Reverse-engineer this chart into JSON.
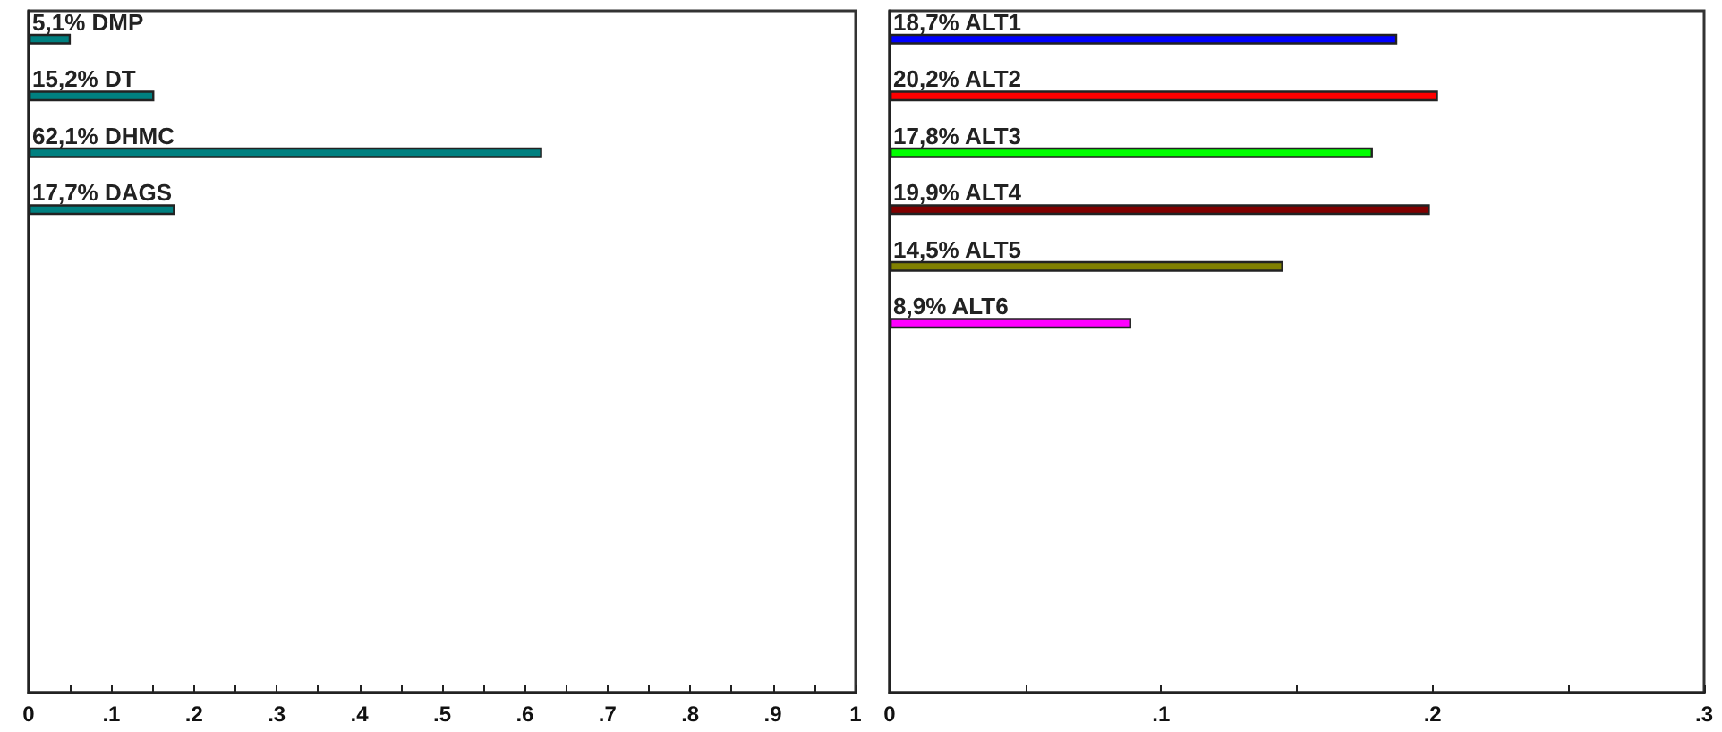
{
  "chart_data": [
    {
      "type": "bar",
      "orientation": "horizontal",
      "categories": [
        null,
        null,
        null,
        null,
        null,
        null,
        null,
        null,
        null,
        null,
        null,
        null
      ],
      "values": [
        0.051,
        0.152,
        0.621,
        0.177,
        null,
        null,
        null,
        null,
        null,
        null,
        null,
        null
      ],
      "color": "#008080",
      "value_labels": [
        "5,1% DMP",
        "15,2% DT",
        "62,1% DHMC",
        "17,7% DAGS",
        null,
        null,
        null,
        null,
        null,
        null,
        null,
        null
      ],
      "xlim": [
        0,
        1
      ],
      "xticks": [
        {
          "value": 0,
          "label": "0"
        },
        {
          "value": 0.05,
          "label": null
        },
        {
          "value": 0.1,
          "label": ".1"
        },
        {
          "value": 0.15,
          "label": null
        },
        {
          "value": 0.2,
          "label": ".2"
        },
        {
          "value": 0.25,
          "label": null
        },
        {
          "value": 0.3,
          "label": ".3"
        },
        {
          "value": 0.35,
          "label": null
        },
        {
          "value": 0.4,
          "label": ".4"
        },
        {
          "value": 0.45,
          "label": null
        },
        {
          "value": 0.5,
          "label": ".5"
        },
        {
          "value": 0.55,
          "label": null
        },
        {
          "value": 0.6,
          "label": ".6"
        },
        {
          "value": 0.65,
          "label": null
        },
        {
          "value": 0.7,
          "label": ".7"
        },
        {
          "value": 0.75,
          "label": null
        },
        {
          "value": 0.8,
          "label": ".8"
        },
        {
          "value": 0.85,
          "label": null
        },
        {
          "value": 0.9,
          "label": ".9"
        },
        {
          "value": 0.95,
          "label": null
        },
        {
          "value": 1,
          "label": "1"
        }
      ],
      "tick_labels": "x",
      "grid": false
    },
    {
      "type": "bar",
      "orientation": "horizontal",
      "categories": [
        null,
        null,
        null,
        null,
        null,
        null,
        null,
        null,
        null,
        null,
        null,
        null
      ],
      "values": [
        0.187,
        0.202,
        0.178,
        0.199,
        0.145,
        0.089,
        null,
        null,
        null,
        null,
        null,
        null
      ],
      "colors": [
        "#0000ff",
        "#ff0000",
        "#00ff00",
        "#800000",
        "#808000",
        "#ff00ff",
        null,
        null,
        null,
        null,
        null,
        null
      ],
      "value_labels": [
        "18,7% ALT1",
        "20,2% ALT2",
        "17,8% ALT3",
        "19,9% ALT4",
        "14,5% ALT5",
        "8,9% ALT6",
        null,
        null,
        null,
        null,
        null,
        null
      ],
      "xlim": [
        0,
        0.3
      ],
      "xticks": [
        {
          "value": 0,
          "label": "0"
        },
        {
          "value": 0.05,
          "label": null
        },
        {
          "value": 0.1,
          "label": ".1"
        },
        {
          "value": 0.15,
          "label": null
        },
        {
          "value": 0.2,
          "label": ".2"
        },
        {
          "value": 0.25,
          "label": null
        },
        {
          "value": 0.3,
          "label": ".3"
        }
      ],
      "tick_labels": "x",
      "grid": false
    }
  ]
}
